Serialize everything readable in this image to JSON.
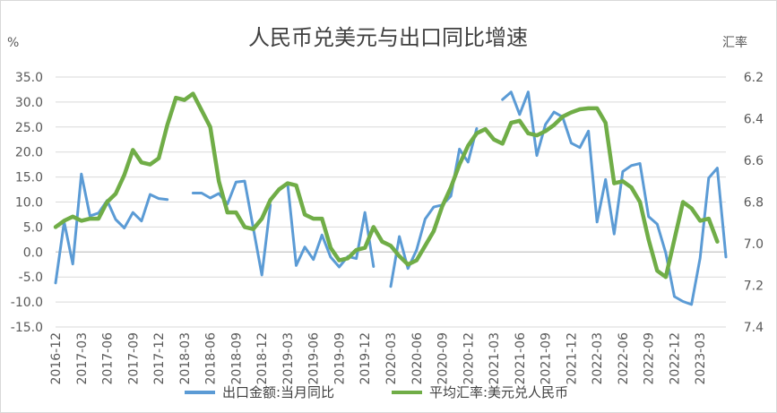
{
  "chart_data": {
    "type": "line",
    "title": "人民币兑美元与出口同比增速",
    "left_axis_unit": "%",
    "right_axis_unit": "汇率",
    "ylim_left": [
      -15,
      35
    ],
    "left_ticks": [
      "35.0",
      "30.0",
      "25.0",
      "20.0",
      "15.0",
      "10.0",
      "5.0",
      "0.0",
      "-5.0",
      "-10.0",
      "-15.0"
    ],
    "ylim_right": [
      7.4,
      6.2
    ],
    "right_ticks": [
      "6.2",
      "6.4",
      "6.6",
      "6.8",
      "7.0",
      "7.2",
      "7.4"
    ],
    "right_axis_inverted": true,
    "x_start": "2016-12",
    "x_end": "2023-06",
    "x_tick_labels": [
      "2016-12",
      "2017-03",
      "2017-06",
      "2017-09",
      "2017-12",
      "2018-03",
      "2018-06",
      "2018-09",
      "2018-12",
      "2019-03",
      "2019-06",
      "2019-09",
      "2019-12",
      "2020-03",
      "2020-06",
      "2020-09",
      "2020-12",
      "2021-03",
      "2021-06",
      "2021-09",
      "2021-12",
      "2022-03",
      "2022-06",
      "2022-09",
      "2022-12",
      "2023-03"
    ],
    "legend_position": "bottom",
    "colors": {
      "export": "#5B9BD5",
      "fx": "#70AD47"
    },
    "series": [
      {
        "name": "出口金额:当月同比",
        "axis": "left",
        "points": [
          [
            "2016-12",
            -6.2
          ],
          [
            "2017-01",
            6.0
          ],
          [
            "2017-02",
            -2.4
          ],
          [
            "2017-03",
            15.6
          ],
          [
            "2017-04",
            7.2
          ],
          [
            "2017-05",
            7.8
          ],
          [
            "2017-06",
            10.3
          ],
          [
            "2017-07",
            6.5
          ],
          [
            "2017-08",
            4.8
          ],
          [
            "2017-09",
            7.9
          ],
          [
            "2017-10",
            6.2
          ],
          [
            "2017-11",
            11.5
          ],
          [
            "2017-12",
            10.7
          ],
          [
            "2018-01",
            10.5
          ],
          [
            "2018-04",
            11.8
          ],
          [
            "2018-05",
            11.8
          ],
          [
            "2018-06",
            10.8
          ],
          [
            "2018-07",
            11.7
          ],
          [
            "2018-08",
            9.6
          ],
          [
            "2018-09",
            14.0
          ],
          [
            "2018-10",
            14.2
          ],
          [
            "2018-11",
            4.8
          ],
          [
            "2018-12",
            -4.6
          ],
          [
            "2019-01",
            9.4
          ],
          [
            "2019-03",
            13.8
          ],
          [
            "2019-04",
            -2.7
          ],
          [
            "2019-05",
            1.0
          ],
          [
            "2019-06",
            -1.5
          ],
          [
            "2019-07",
            3.4
          ],
          [
            "2019-08",
            -1.0
          ],
          [
            "2019-09",
            -3.0
          ],
          [
            "2019-10",
            -0.9
          ],
          [
            "2019-11",
            -1.3
          ],
          [
            "2019-12",
            7.9
          ],
          [
            "2020-01",
            -2.9
          ],
          [
            "2020-03",
            -6.9
          ],
          [
            "2020-04",
            3.1
          ],
          [
            "2020-05",
            -3.3
          ],
          [
            "2020-06",
            0.4
          ],
          [
            "2020-07",
            6.6
          ],
          [
            "2020-08",
            9.0
          ],
          [
            "2020-09",
            9.4
          ],
          [
            "2020-10",
            11.2
          ],
          [
            "2020-11",
            20.6
          ],
          [
            "2020-12",
            18.0
          ],
          [
            "2021-01",
            24.7
          ],
          [
            "2021-04",
            30.5
          ],
          [
            "2021-05",
            32.0
          ],
          [
            "2021-06",
            27.5
          ],
          [
            "2021-07",
            32.0
          ],
          [
            "2021-08",
            19.3
          ],
          [
            "2021-09",
            25.5
          ],
          [
            "2021-10",
            28.0
          ],
          [
            "2021-11",
            27.0
          ],
          [
            "2021-12",
            21.8
          ],
          [
            "2022-01",
            20.9
          ],
          [
            "2022-02",
            24.2
          ],
          [
            "2022-03",
            6.0
          ],
          [
            "2022-04",
            14.5
          ],
          [
            "2022-05",
            3.6
          ],
          [
            "2022-06",
            16.1
          ],
          [
            "2022-07",
            17.3
          ],
          [
            "2022-08",
            17.7
          ],
          [
            "2022-09",
            7.1
          ],
          [
            "2022-10",
            5.6
          ],
          [
            "2022-11",
            -0.2
          ],
          [
            "2022-12",
            -8.9
          ],
          [
            "2023-01",
            -9.9
          ],
          [
            "2023-02",
            -10.5
          ],
          [
            "2023-03",
            -1.2
          ],
          [
            "2023-04",
            14.8
          ],
          [
            "2023-05",
            16.8
          ],
          [
            "2023-06",
            -1.0
          ]
        ]
      },
      {
        "name": "平均汇率:美元兑人民币",
        "axis": "right",
        "points": [
          [
            "2016-12",
            6.92
          ],
          [
            "2017-01",
            6.89
          ],
          [
            "2017-02",
            6.87
          ],
          [
            "2017-03",
            6.89
          ],
          [
            "2017-04",
            6.88
          ],
          [
            "2017-05",
            6.88
          ],
          [
            "2017-06",
            6.8
          ],
          [
            "2017-07",
            6.76
          ],
          [
            "2017-08",
            6.67
          ],
          [
            "2017-09",
            6.55
          ],
          [
            "2017-10",
            6.61
          ],
          [
            "2017-11",
            6.62
          ],
          [
            "2017-12",
            6.59
          ],
          [
            "2018-01",
            6.43
          ],
          [
            "2018-02",
            6.3
          ],
          [
            "2018-03",
            6.31
          ],
          [
            "2018-04",
            6.28
          ],
          [
            "2018-05",
            6.36
          ],
          [
            "2018-06",
            6.44
          ],
          [
            "2018-07",
            6.7
          ],
          [
            "2018-08",
            6.85
          ],
          [
            "2018-09",
            6.85
          ],
          [
            "2018-10",
            6.92
          ],
          [
            "2018-11",
            6.93
          ],
          [
            "2018-12",
            6.88
          ],
          [
            "2019-01",
            6.79
          ],
          [
            "2019-02",
            6.74
          ],
          [
            "2019-03",
            6.71
          ],
          [
            "2019-04",
            6.72
          ],
          [
            "2019-05",
            6.86
          ],
          [
            "2019-06",
            6.88
          ],
          [
            "2019-07",
            6.88
          ],
          [
            "2019-08",
            7.02
          ],
          [
            "2019-09",
            7.08
          ],
          [
            "2019-10",
            7.07
          ],
          [
            "2019-11",
            7.03
          ],
          [
            "2019-12",
            7.02
          ],
          [
            "2020-01",
            6.92
          ],
          [
            "2020-02",
            6.99
          ],
          [
            "2020-03",
            7.01
          ],
          [
            "2020-04",
            7.06
          ],
          [
            "2020-05",
            7.1
          ],
          [
            "2020-06",
            7.08
          ],
          [
            "2020-07",
            7.01
          ],
          [
            "2020-08",
            6.94
          ],
          [
            "2020-09",
            6.82
          ],
          [
            "2020-10",
            6.73
          ],
          [
            "2020-11",
            6.62
          ],
          [
            "2020-12",
            6.53
          ],
          [
            "2021-01",
            6.47
          ],
          [
            "2021-02",
            6.45
          ],
          [
            "2021-03",
            6.5
          ],
          [
            "2021-04",
            6.52
          ],
          [
            "2021-05",
            6.42
          ],
          [
            "2021-06",
            6.41
          ],
          [
            "2021-07",
            6.47
          ],
          [
            "2021-08",
            6.48
          ],
          [
            "2021-09",
            6.46
          ],
          [
            "2021-10",
            6.43
          ],
          [
            "2021-11",
            6.39
          ],
          [
            "2021-12",
            6.37
          ],
          [
            "2022-01",
            6.355
          ],
          [
            "2022-02",
            6.35
          ],
          [
            "2022-03",
            6.35
          ],
          [
            "2022-04",
            6.42
          ],
          [
            "2022-05",
            6.71
          ],
          [
            "2022-06",
            6.7
          ],
          [
            "2022-07",
            6.73
          ],
          [
            "2022-08",
            6.8
          ],
          [
            "2022-09",
            6.98
          ],
          [
            "2022-10",
            7.13
          ],
          [
            "2022-11",
            7.16
          ],
          [
            "2022-12",
            6.98
          ],
          [
            "2023-01",
            6.8
          ],
          [
            "2023-02",
            6.83
          ],
          [
            "2023-03",
            6.89
          ],
          [
            "2023-04",
            6.88
          ],
          [
            "2023-05",
            6.99
          ]
        ]
      }
    ]
  }
}
